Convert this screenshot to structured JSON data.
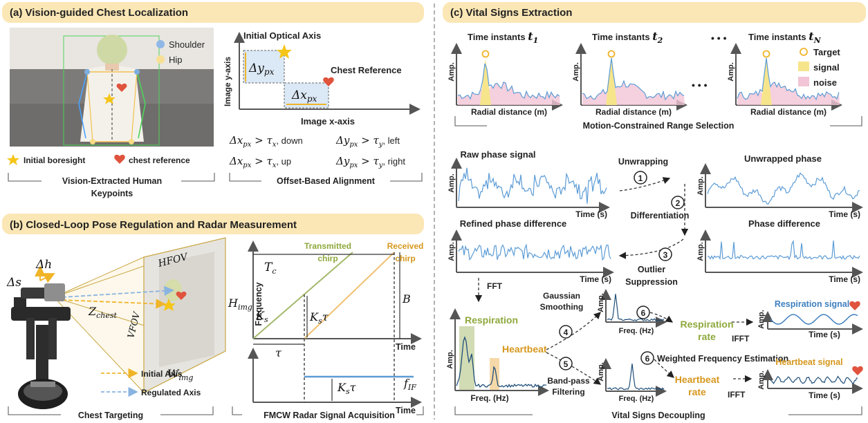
{
  "panel_a": {
    "title": "(a) Vision-guided Chest Localization",
    "legend_shoulder": "Shoulder",
    "legend_hip": "Hip",
    "legend_boresight": "Initial boresight",
    "legend_chest": "chest reference",
    "caption_left_1": "Vision-Extracted Human",
    "caption_left_2": "Keypoints",
    "caption_right": "Offset-Based Alignment",
    "optical_axis": "Initial Optical Axis",
    "chest_reference": "Chest Reference",
    "y_axis": "Image y-axis",
    "x_axis": "Image x-axis",
    "dy": "Δy",
    "dx": "Δx",
    "sub_px": "px",
    "rule_1_cond": "Δx",
    "rule_1_dir": ", down",
    "rule_2_cond": "Δy",
    "rule_2_dir": ", left",
    "rule_3_cond": "Δx",
    "rule_3_dir": ", up",
    "rule_4_cond": "Δy",
    "rule_4_dir": ", right",
    "gt_tau": " > τ",
    "sub_x": "x",
    "sub_y": "y"
  },
  "panel_b": {
    "title": "(b) Closed-Loop Pose Regulation and Radar Measurement",
    "hfov": "HFOV",
    "vfov": "VFOV",
    "h_img": "H",
    "w_img": "W",
    "sub_img": "img",
    "z_chest": "Z",
    "sub_chest": "chest",
    "dh": "Δh",
    "ds": "Δs",
    "initial_axis": "Initial Axis",
    "regulated_axis": "Regulated Axis",
    "caption_left": "Chest Targeting",
    "caption_right": "FMCW Radar Signal Acquisition",
    "transmitted_1": "Transmitted",
    "transmitted_2": "chirp",
    "received_1": "Received",
    "received_2": "chirp",
    "frequency": "Frequency",
    "time": "Time",
    "tc": "T",
    "sub_c": "c",
    "ks": "K",
    "sub_s": "s",
    "ks_tau": "τ",
    "tau": "τ",
    "b": "B",
    "f_if": "f",
    "sub_if": "IF"
  },
  "panel_c": {
    "title": "(c) Vital Signs Extraction",
    "time_instants": "Time instants ",
    "t1": "t",
    "t2": "t",
    "tn": "t",
    "sub_1": "1",
    "sub_2": "2",
    "sub_n": "N",
    "ellipsis": "• • •",
    "legend_target": "Target",
    "legend_signal": "signal",
    "legend_noise": "noise",
    "amp": "Amp.",
    "radial": "Radial distance (m)",
    "range_caption": "Motion-Constrained Range Selection",
    "raw_phase": "Raw phase signal",
    "unwrapped_phase": "Unwrapped phase",
    "refined_phase": "Refined phase difference",
    "phase_difference": "Phase difference",
    "time_s": "Time (s)",
    "unwrapping": "Unwrapping",
    "differentiation": "Differentiation",
    "outlier_1": "Outlier",
    "outlier_2": "Suppression",
    "fft": "FFT",
    "gaussian_1": "Gaussian",
    "gaussian_2": "Smoothing",
    "bandpass_1": "Band-pass",
    "bandpass_2": "Filtering",
    "respiration": "Respiration",
    "heartbeat": "Heartbeat",
    "freq_hz": "Freq. (Hz)",
    "respiration_rate_1": "Respiration",
    "respiration_rate_2": "rate",
    "heartbeat_rate_1": "Heartbeat",
    "heartbeat_rate_2": "rate",
    "ifft": "IFFT",
    "weighted": "Weighted Frequency Estimation",
    "respiration_signal": "Respiration signal",
    "heartbeat_signal": "Heartbeat signal",
    "step_1": "1",
    "step_2": "2",
    "step_3": "3",
    "step_4": "4",
    "step_5": "5",
    "step_6": "6",
    "step_6b": "6",
    "decoupling_caption": "Vital Signs Decoupling"
  },
  "colors": {
    "header": "#fbe7b5",
    "signal_blue": "#5b9bd5",
    "signal_fill": "#f7e58c",
    "noise_fill": "#f2c4d6",
    "tx_green": "#a3b86a",
    "rx_orange": "#f0c070",
    "respiration_text": "#8ea83c",
    "heartbeat_text": "#d6971d",
    "heart_red": "#e0533d",
    "star_gold": "#f5c518"
  }
}
